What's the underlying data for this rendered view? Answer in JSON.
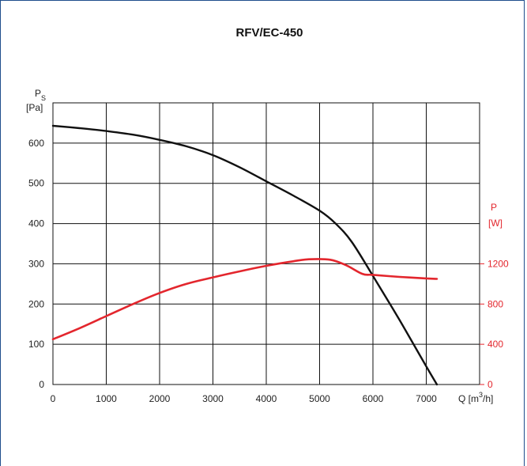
{
  "chart_data": {
    "type": "line",
    "title": "RFV/EC-450",
    "xlabel": "Q [m3/h]",
    "xlabel_parts": {
      "prefix": "Q [m",
      "sup": "3",
      "suffix": "/h]"
    },
    "ylabel_left": {
      "main": "P",
      "sub": "S",
      "unit": "[Pa]"
    },
    "ylabel_right": {
      "main": "P",
      "unit": "[W]"
    },
    "xlim": [
      0,
      8000
    ],
    "ylim_left": [
      0,
      700
    ],
    "ylim_right": [
      0,
      2800
    ],
    "x_ticks": [
      "0",
      "1000",
      "2000",
      "3000",
      "4000",
      "5000",
      "6000",
      "7000"
    ],
    "y_left_ticks": [
      "0",
      "100",
      "200",
      "300",
      "400",
      "500",
      "600"
    ],
    "y_right_ticks": [
      "0",
      "400",
      "800",
      "1200"
    ],
    "grid": true,
    "colors": {
      "pressure": "#111111",
      "power": "#e3262d",
      "frame": "#1f4e8c"
    },
    "series": [
      {
        "axis": "left",
        "x": [
          0,
          500,
          1000,
          1500,
          2000,
          2500,
          3000,
          3500,
          4000,
          4500,
          5000,
          5300,
          5600,
          6000,
          6500,
          7000,
          7200
        ],
        "values": [
          643,
          637,
          630,
          621,
          608,
          592,
          570,
          540,
          505,
          470,
          432,
          400,
          355,
          270,
          160,
          45,
          0
        ]
      },
      {
        "axis": "right",
        "x": [
          0,
          500,
          1000,
          1500,
          2000,
          2500,
          3000,
          3500,
          4000,
          4500,
          4800,
          5200,
          5500,
          5800,
          6000,
          6500,
          7000,
          7200
        ],
        "values": [
          450,
          560,
          680,
          800,
          910,
          1000,
          1065,
          1125,
          1180,
          1225,
          1245,
          1240,
          1185,
          1100,
          1090,
          1070,
          1055,
          1050
        ]
      }
    ]
  }
}
